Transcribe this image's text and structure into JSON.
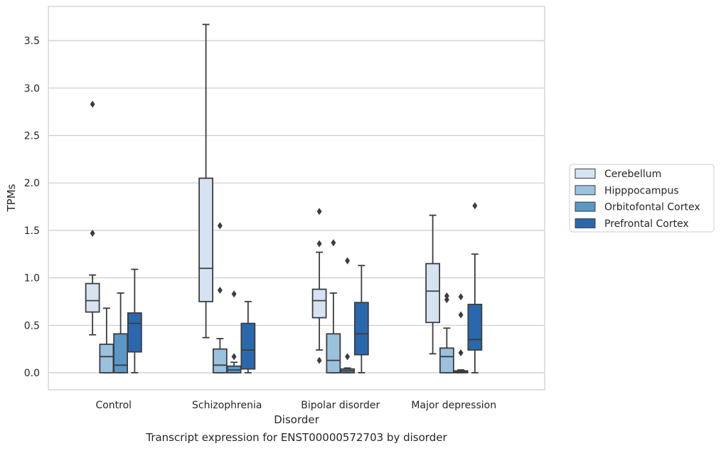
{
  "caption": "Transcript expression for ENST00000572703 by disorder",
  "chart_data": {
    "type": "boxplot",
    "title": "",
    "xlabel": "Disorder",
    "ylabel": "TPMs",
    "ylim": [
      -0.18,
      3.87
    ],
    "yticks": [
      "0.0",
      "0.5",
      "1.0",
      "1.5",
      "2.0",
      "2.5",
      "3.0",
      "3.5"
    ],
    "grid": "horizontal",
    "legend_position": "right",
    "categories": [
      "Control",
      "Schizophrenia",
      "Bipolar disorder",
      "Major depression"
    ],
    "series": [
      {
        "name": "Cerebellum",
        "color": "#d5e3f2",
        "boxes": [
          {
            "whisker_low": 0.4,
            "q1": 0.64,
            "median": 0.76,
            "q3": 0.94,
            "whisker_high": 1.03,
            "outliers": [
              1.47,
              2.83
            ]
          },
          {
            "whisker_low": 0.37,
            "q1": 0.75,
            "median": 1.1,
            "q3": 2.05,
            "whisker_high": 3.67,
            "outliers": []
          },
          {
            "whisker_low": 0.24,
            "q1": 0.58,
            "median": 0.76,
            "q3": 0.88,
            "whisker_high": 1.27,
            "outliers": [
              0.13,
              1.36,
              1.7
            ]
          },
          {
            "whisker_low": 0.2,
            "q1": 0.53,
            "median": 0.86,
            "q3": 1.15,
            "whisker_high": 1.66,
            "outliers": []
          }
        ]
      },
      {
        "name": "Hipppocampus",
        "color": "#9ac2df",
        "boxes": [
          {
            "whisker_low": 0.0,
            "q1": 0.0,
            "median": 0.17,
            "q3": 0.3,
            "whisker_high": 0.68,
            "outliers": []
          },
          {
            "whisker_low": 0.0,
            "q1": 0.0,
            "median": 0.08,
            "q3": 0.25,
            "whisker_high": 0.36,
            "outliers": [
              0.87,
              1.55
            ]
          },
          {
            "whisker_low": 0.0,
            "q1": 0.0,
            "median": 0.13,
            "q3": 0.41,
            "whisker_high": 0.84,
            "outliers": [
              1.37
            ]
          },
          {
            "whisker_low": 0.0,
            "q1": 0.0,
            "median": 0.17,
            "q3": 0.26,
            "whisker_high": 0.47,
            "outliers": [
              0.77,
              0.81
            ]
          }
        ]
      },
      {
        "name": "Orbitofontal Cortex",
        "color": "#5b97c7",
        "boxes": [
          {
            "whisker_low": 0.0,
            "q1": 0.0,
            "median": 0.08,
            "q3": 0.41,
            "whisker_high": 0.84,
            "outliers": []
          },
          {
            "whisker_low": 0.0,
            "q1": 0.0,
            "median": 0.03,
            "q3": 0.07,
            "whisker_high": 0.11,
            "outliers": [
              0.17,
              0.83
            ]
          },
          {
            "whisker_low": 0.0,
            "q1": 0.0,
            "median": 0.02,
            "q3": 0.04,
            "whisker_high": 0.05,
            "outliers": [
              0.17,
              1.18
            ]
          },
          {
            "whisker_low": 0.0,
            "q1": 0.0,
            "median": 0.01,
            "q3": 0.02,
            "whisker_high": 0.03,
            "outliers": [
              0.21,
              0.61,
              0.8
            ]
          }
        ]
      },
      {
        "name": "Prefrontal Cortex",
        "color": "#2a68ae",
        "boxes": [
          {
            "whisker_low": 0.0,
            "q1": 0.22,
            "median": 0.52,
            "q3": 0.63,
            "whisker_high": 1.09,
            "outliers": []
          },
          {
            "whisker_low": 0.0,
            "q1": 0.04,
            "median": 0.24,
            "q3": 0.52,
            "whisker_high": 0.75,
            "outliers": []
          },
          {
            "whisker_low": 0.0,
            "q1": 0.19,
            "median": 0.41,
            "q3": 0.74,
            "whisker_high": 1.13,
            "outliers": []
          },
          {
            "whisker_low": 0.0,
            "q1": 0.24,
            "median": 0.35,
            "q3": 0.72,
            "whisker_high": 1.25,
            "outliers": [
              1.76
            ]
          }
        ]
      }
    ]
  }
}
